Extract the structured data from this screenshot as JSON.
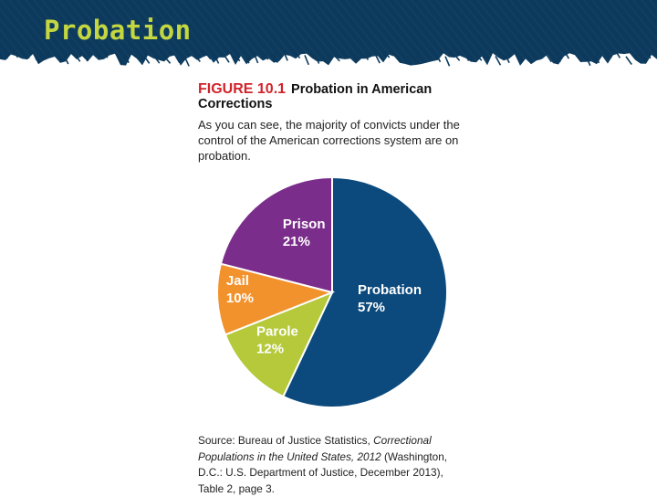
{
  "header": {
    "title": "Probation"
  },
  "figure": {
    "label": "FIGURE 10.1",
    "title": "Probation in American Corrections",
    "caption": "As you can see, the majority of convicts under the control of the American corrections system are on probation."
  },
  "colors": {
    "header_bg": "#0d3a5c",
    "title_text": "#c4d640",
    "figure_label": "#d2232a"
  },
  "chart_data": {
    "type": "pie",
    "title": "Probation in American Corrections",
    "start_angle_deg": 0,
    "direction": "clockwise",
    "slices": [
      {
        "name": "Probation",
        "value": 57,
        "label": "57%",
        "color": "#0c4a7d"
      },
      {
        "name": "Parole",
        "value": 12,
        "label": "12%",
        "color": "#b5c93b"
      },
      {
        "name": "Jail",
        "value": 10,
        "label": "10%",
        "color": "#f2922c"
      },
      {
        "name": "Prison",
        "value": 21,
        "label": "21%",
        "color": "#7a2d8a"
      }
    ]
  },
  "source": {
    "prefix": "Source: Bureau of Justice Statistics,",
    "work_title": "Correctional Populations in the United States, 2012",
    "suffix": "(Washington, D.C.: U.S. Department of Justice, December 2013), Table 2, page 3."
  }
}
